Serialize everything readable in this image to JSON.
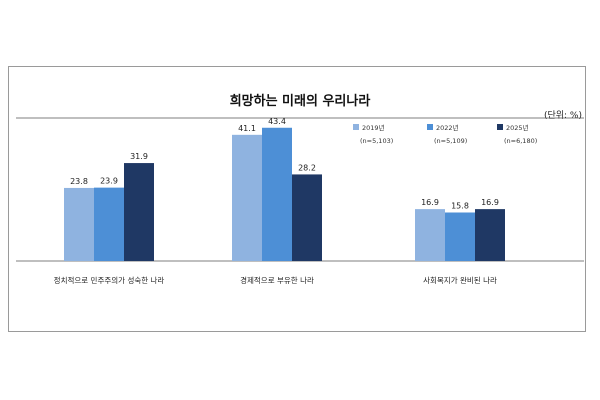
{
  "chart_data": {
    "type": "bar",
    "title": "희망하는 미래의 우리나라",
    "unit": "(단위: %)",
    "categories": [
      "정치적으로 민주주의가 성숙한 나라",
      "경제적으로 부유한 나라",
      "사회복지가 완비된 나라"
    ],
    "series": [
      {
        "name": "2019년",
        "sample": "(n=5,103)",
        "color": "#8fb3e0",
        "values": [
          23.8,
          41.1,
          16.9
        ]
      },
      {
        "name": "2022년",
        "sample": "(n=5,109)",
        "color": "#4d8fd6",
        "values": [
          23.9,
          43.4,
          15.8
        ]
      },
      {
        "name": "2025년",
        "sample": "(n=6,180)",
        "color": "#1f3864",
        "values": [
          31.9,
          28.2,
          16.9
        ]
      }
    ],
    "ylim": [
      0,
      50
    ],
    "grid": false,
    "legend_position": "top-right"
  }
}
